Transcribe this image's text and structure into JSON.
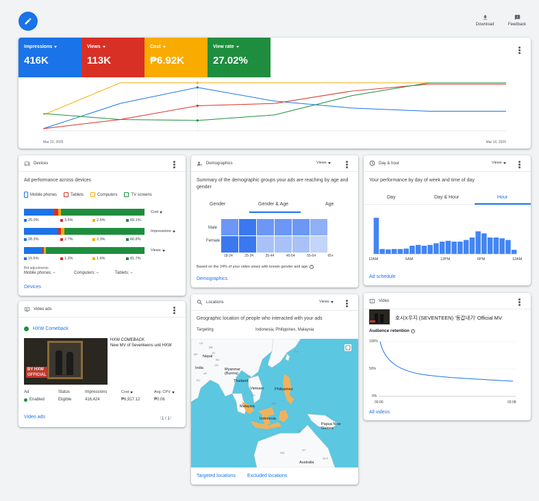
{
  "toolbar": {
    "download_label": "Download",
    "feedback_label": "Feedback"
  },
  "metrics": [
    {
      "label": "Impressions",
      "value": "416K",
      "color": "#1a73e8"
    },
    {
      "label": "Views",
      "value": "113K",
      "color": "#d93025"
    },
    {
      "label": "Cost",
      "value": "₱6.92K",
      "color": "#f9ab00"
    },
    {
      "label": "View rate",
      "value": "27.02%",
      "color": "#1e8e3e"
    }
  ],
  "chart_data": {
    "type": "line",
    "x": [
      "Mar 10, 2025",
      "Mar 11, 2025",
      "Mar 12, 2025",
      "Mar 13, 2025",
      "Mar 14, 2025",
      "Mar 15, 2025",
      "Mar 16, 2025"
    ],
    "x_tick_labels": [
      "Mar 10, 2025",
      "Mar 16, 2025"
    ],
    "series": [
      {
        "name": "Impressions",
        "color": "#1a73e8",
        "values": [
          0.0,
          0.55,
          0.9,
          0.6,
          0.45,
          0.38,
          0.38
        ]
      },
      {
        "name": "Views",
        "color": "#d93025",
        "values": [
          0.0,
          0.2,
          0.5,
          0.55,
          0.82,
          0.97,
          0.97
        ]
      },
      {
        "name": "Cost",
        "color": "#f9ab00",
        "values": [
          0.3,
          1.0,
          1.0,
          1.0,
          1.0,
          1.0,
          1.0
        ]
      },
      {
        "name": "View rate",
        "color": "#1e8e3e",
        "values": [
          0.33,
          0.2,
          0.18,
          0.3,
          0.72,
          1.0,
          1.0
        ]
      }
    ]
  },
  "devices": {
    "title": "Devices",
    "subtitle": "Ad performance across devices",
    "legend": [
      "Mobile phones",
      "Tablets",
      "Computers",
      "TV screens"
    ],
    "rows": [
      {
        "metric": "Cost",
        "values": [
          "25.0%",
          "3.5%",
          "2.5%",
          "69.1%"
        ],
        "shares": [
          25.0,
          3.5,
          2.5,
          69.1
        ]
      },
      {
        "metric": "Impressions",
        "values": [
          "28.3%",
          "2.7%",
          "2.3%",
          "66.8%"
        ],
        "shares": [
          28.3,
          2.7,
          2.3,
          66.8
        ]
      },
      {
        "metric": "Views",
        "values": [
          "15.5%",
          "1.2%",
          "1.6%",
          "81.7%"
        ],
        "shares": [
          15.5,
          1.2,
          1.6,
          81.7
        ]
      }
    ],
    "bid_adjustments_label": "Bid adjustments",
    "bid_mobile": "Mobile phones: –",
    "bid_computers": "Computers: –",
    "bid_tablets": "Tablets: –",
    "link": "Devices"
  },
  "demographics": {
    "title": "Demographics",
    "dropdown": "Views",
    "subtitle": "Summary of the demographic groups your ads are reaching by age and gender",
    "tabs": [
      "Gender",
      "Gender & Age",
      "Age"
    ],
    "genders": [
      "Male",
      "Female"
    ],
    "ages": [
      "18-24",
      "25-34",
      "35-44",
      "45-54",
      "55-64",
      "65+"
    ],
    "note": "Based on the 24% of your video views with known gender and age.",
    "link": "Demographics"
  },
  "dayhour": {
    "title": "Day & hour",
    "dropdown": "Views",
    "subtitle": "Your performance by day of week and time of day",
    "tabs": [
      "Day",
      "Day & Hour",
      "Hour"
    ],
    "ticks": [
      "12AM",
      "6AM",
      "12PM",
      "6PM",
      "12AM"
    ],
    "values": [
      0.88,
      0.12,
      0.11,
      0.12,
      0.12,
      0.13,
      0.2,
      0.22,
      0.2,
      0.22,
      0.26,
      0.3,
      0.32,
      0.3,
      0.3,
      0.34,
      0.4,
      0.55,
      0.5,
      0.4,
      0.4,
      0.38,
      0.34,
      0.1
    ],
    "link": "Ad schedule"
  },
  "videoads": {
    "title": "Video ads",
    "campaign": "HXW Comeback",
    "ad_title": "HXW COMEBACK",
    "ad_desc": "New MV of Seventeens unit HXW",
    "thumb_text": "BY HXW\nOFFICIAL",
    "headers": [
      "Ad",
      "Status",
      "Impressions",
      "Cost",
      "Avg. CPV"
    ],
    "row": [
      "Enabled",
      "Eligible",
      "416,424",
      "₱6,917.12",
      "₱0.06"
    ],
    "link": "Video ads",
    "pager": "1 / 1"
  },
  "locations": {
    "title": "Locations",
    "dropdown": "Views",
    "subtitle": "Geographic location of people who interacted with your ads",
    "targeting_label": "Targeting",
    "targeting_value": "Indonesia, Philippines, Malaysia",
    "map_labels": [
      "Nepal",
      "India",
      "Myanmar\n(Burma)",
      "Thailand",
      "Vietnam",
      "Philippines",
      "Malaysia",
      "Indonesia",
      "Papua New\nGuinea",
      "Australia",
      "TW",
      "LA",
      "BD",
      "KH",
      "BN",
      "TL",
      "NT",
      "QLD",
      "WA",
      "AP",
      "BR",
      "RJ",
      "JH",
      "UP",
      "OD",
      "MP"
    ],
    "link_targeted": "Targeted locations",
    "link_excluded": "Excluded locations"
  },
  "video": {
    "title": "Video",
    "video_title": "호시X우지 (SEVENTEEN) '동갑내기' Official MV",
    "retention_label": "Audience retention",
    "y_ticks": [
      "100%",
      "50%",
      "0%"
    ],
    "x_ticks": [
      "00:00",
      "03:08"
    ],
    "link": "All videos"
  }
}
